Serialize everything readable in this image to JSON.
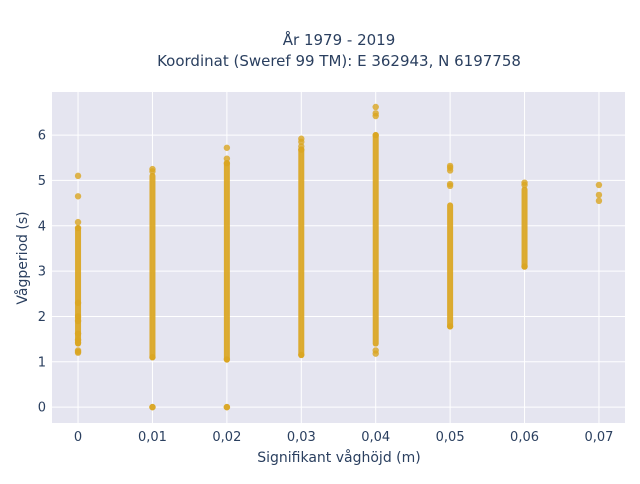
{
  "chart_data": {
    "type": "scatter",
    "title": [
      "År 1979 - 2019",
      "Koordinat (Sweref 99 TM): E 362943, N 6197758"
    ],
    "xlabel": "Signifikant våghöjd (m)",
    "ylabel": "Vågperiod (s)",
    "xlim": [
      -0.0035,
      0.0735
    ],
    "ylim": [
      -0.35,
      6.95
    ],
    "x_ticks": [
      0,
      0.01,
      0.02,
      0.03,
      0.04,
      0.05,
      0.06,
      0.07
    ],
    "x_tick_labels": [
      "0",
      "0,01",
      "0,02",
      "0,03",
      "0,04",
      "0,05",
      "0,06",
      "0,07"
    ],
    "y_ticks": [
      0,
      1,
      2,
      3,
      4,
      5,
      6
    ],
    "y_tick_labels": [
      "0",
      "1",
      "2",
      "3",
      "4",
      "5",
      "6"
    ],
    "grid": true,
    "marker_color": "#DAA520",
    "plot_background": "#E5E5F0",
    "series": [
      {
        "points_x": [
          0,
          0,
          0,
          0,
          0,
          0,
          0,
          0,
          0,
          0,
          0,
          0,
          0,
          0.01,
          0.01,
          0.01,
          0.01,
          0.01,
          0.02,
          0.02,
          0.02,
          0.02,
          0.02,
          0.02,
          0.03,
          0.03,
          0.03,
          0.03,
          0.03,
          0.04,
          0.04,
          0.04,
          0.04,
          0.04,
          0.04,
          0.05,
          0.05,
          0.05,
          0.05,
          0.05,
          0.05,
          0.06,
          0.06,
          0.06,
          0.07,
          0.07,
          0.07
        ],
        "points_y": [
          5.1,
          4.65,
          4.08,
          3.95,
          2.3,
          2.0,
          1.9,
          1.62,
          1.48,
          1.42,
          1.25,
          1.22,
          1.2,
          5.25,
          5.2,
          1.1,
          0.0,
          0.0,
          5.72,
          5.48,
          5.38,
          1.05,
          0.0,
          0.0,
          5.92,
          5.85,
          5.75,
          5.68,
          1.15,
          6.62,
          6.48,
          6.42,
          6.0,
          1.25,
          1.18,
          5.32,
          5.28,
          5.22,
          4.92,
          4.88,
          1.78,
          4.95,
          4.9,
          3.1,
          4.9,
          4.68,
          4.55
        ],
        "dense_ranges": [
          {
            "x": 0,
            "y_min": 1.4,
            "y_max": 3.95
          },
          {
            "x": 0.01,
            "y_min": 1.1,
            "y_max": 5.1
          },
          {
            "x": 0.02,
            "y_min": 1.05,
            "y_max": 5.38
          },
          {
            "x": 0.03,
            "y_min": 1.15,
            "y_max": 5.68
          },
          {
            "x": 0.04,
            "y_min": 1.4,
            "y_max": 6.0
          },
          {
            "x": 0.05,
            "y_min": 1.78,
            "y_max": 4.45
          },
          {
            "x": 0.06,
            "y_min": 3.1,
            "y_max": 4.8
          }
        ]
      }
    ]
  }
}
